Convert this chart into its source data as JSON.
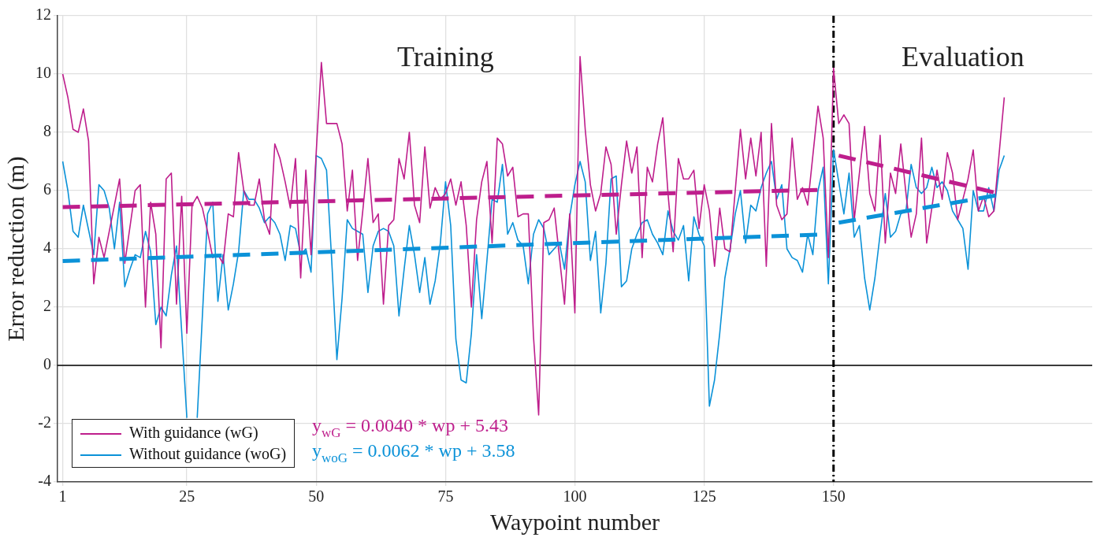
{
  "chart_data": {
    "type": "line",
    "xlabel": "Waypoint number",
    "ylabel": "Error reduction (m)",
    "xlim": [
      0,
      200
    ],
    "xticks": [
      1,
      25,
      50,
      75,
      100,
      125,
      150
    ],
    "ylim": [
      -4,
      12
    ],
    "yticks": [
      -4,
      -2,
      0,
      2,
      4,
      6,
      8,
      10,
      12
    ],
    "grid": true,
    "legend": "bottom left",
    "marker": "none",
    "series": [
      {
        "name": "With guidance (wG)",
        "color": "#be1e8c",
        "line_style": "solid",
        "x": [
          1,
          2,
          3,
          4,
          5,
          6,
          7,
          8,
          9,
          12,
          13,
          15,
          16,
          17,
          18,
          19,
          20,
          21,
          22,
          23,
          24,
          25,
          26,
          27,
          28,
          29,
          30,
          31,
          32,
          33,
          34,
          35,
          36,
          37,
          38,
          39,
          40,
          41,
          42,
          43,
          44,
          45,
          46,
          47,
          48,
          49,
          50,
          51,
          52,
          53,
          54,
          55,
          56,
          57,
          58,
          59,
          60,
          61,
          62,
          63,
          64,
          65,
          66,
          67,
          68,
          69,
          70,
          71,
          72,
          73,
          74,
          75,
          76,
          77,
          78,
          79,
          80,
          81,
          82,
          83,
          84,
          85,
          86,
          87,
          88,
          89,
          90,
          91,
          92,
          93,
          94,
          95,
          96,
          98,
          99,
          100,
          101,
          102,
          103,
          104,
          105,
          106,
          107,
          108,
          109,
          110,
          111,
          112,
          113,
          114,
          115,
          116,
          117,
          118,
          119,
          120,
          121,
          122,
          123,
          124,
          125,
          126,
          127,
          128,
          129,
          130,
          132,
          133,
          134,
          135,
          136,
          137,
          138,
          139,
          140,
          141,
          142,
          143,
          144,
          145,
          146,
          147,
          148,
          149,
          150,
          151,
          152,
          153,
          154,
          156,
          157,
          158,
          159,
          160,
          161,
          162,
          163,
          164,
          165,
          166,
          167,
          168,
          169,
          170,
          171,
          172,
          173,
          174,
          175,
          176,
          177,
          178,
          179,
          180,
          181,
          183
        ],
        "values": [
          10.0,
          9.2,
          8.1,
          8.0,
          8.8,
          7.7,
          2.8,
          4.4,
          3.7,
          6.4,
          3.5,
          6.0,
          6.2,
          2.0,
          5.6,
          4.5,
          0.6,
          6.4,
          6.6,
          2.1,
          5.8,
          1.1,
          5.5,
          5.8,
          5.4,
          4.6,
          3.7,
          3.8,
          3.5,
          5.2,
          5.1,
          7.3,
          6.0,
          5.5,
          5.5,
          6.4,
          5.0,
          4.5,
          7.6,
          7.1,
          6.3,
          5.4,
          7.1,
          3.0,
          6.7,
          3.8,
          7.3,
          10.4,
          8.3,
          8.3,
          8.3,
          7.6,
          5.3,
          6.7,
          3.6,
          5.3,
          7.1,
          4.9,
          5.2,
          2.1,
          4.8,
          5.0,
          7.1,
          6.4,
          8.0,
          5.5,
          4.9,
          7.5,
          5.4,
          6.1,
          5.7,
          5.9,
          6.4,
          5.5,
          6.3,
          4.8,
          2.0,
          5.0,
          6.3,
          7.0,
          4.2,
          7.8,
          7.6,
          6.5,
          6.8,
          5.1,
          5.2,
          5.2,
          1.0,
          -1.7,
          4.9,
          5.0,
          5.4,
          2.1,
          5.2,
          1.8,
          10.6,
          8.1,
          6.2,
          5.3,
          5.9,
          7.5,
          6.9,
          4.5,
          6.2,
          7.7,
          6.6,
          7.5,
          3.7,
          6.8,
          6.3,
          7.6,
          8.5,
          5.9,
          3.9,
          7.1,
          6.4,
          6.4,
          6.7,
          4.7,
          6.2,
          5.3,
          3.4,
          5.4,
          4.0,
          3.9,
          8.1,
          6.4,
          7.8,
          6.5,
          8.0,
          3.4,
          8.3,
          5.5,
          5.0,
          5.2,
          7.8,
          5.7,
          6.1,
          5.5,
          7.2,
          8.9,
          7.8,
          3.7,
          10.2,
          8.3,
          8.6,
          8.3,
          5.0,
          8.2,
          5.9,
          5.3,
          7.9,
          4.2,
          6.6,
          5.9,
          7.6,
          5.9,
          4.4,
          5.2,
          7.8,
          4.2,
          5.4,
          6.7,
          5.7,
          7.3,
          6.6,
          5.0,
          5.7,
          6.4,
          7.4,
          5.3,
          5.8,
          5.1,
          5.3,
          9.2
        ]
      },
      {
        "name": "Without guidance (woG)",
        "color": "#0b92d8",
        "line_style": "solid",
        "x": [
          1,
          2,
          3,
          4,
          5,
          7,
          8,
          9,
          10,
          11,
          12,
          13,
          14,
          15,
          16,
          17,
          18,
          19,
          20,
          21,
          22,
          23,
          25,
          26,
          27,
          29,
          30,
          31,
          32,
          33,
          34,
          35,
          36,
          37,
          38,
          39,
          40,
          41,
          42,
          43,
          44,
          45,
          46,
          47,
          48,
          49,
          50,
          51,
          52,
          53,
          54,
          55,
          56,
          57,
          58,
          59,
          60,
          61,
          62,
          63,
          64,
          65,
          66,
          67,
          68,
          69,
          70,
          71,
          72,
          73,
          74,
          75,
          76,
          77,
          78,
          79,
          80,
          81,
          82,
          83,
          84,
          85,
          86,
          87,
          88,
          89,
          90,
          91,
          92,
          93,
          94,
          95,
          96,
          97,
          98,
          99,
          100,
          101,
          102,
          103,
          104,
          105,
          106,
          107,
          108,
          109,
          110,
          111,
          112,
          113,
          114,
          115,
          116,
          117,
          118,
          119,
          120,
          121,
          122,
          123,
          124,
          125,
          126,
          127,
          128,
          129,
          130,
          131,
          132,
          133,
          134,
          135,
          136,
          137,
          138,
          139,
          140,
          141,
          142,
          143,
          144,
          145,
          146,
          147,
          148,
          149,
          150,
          151,
          152,
          153,
          154,
          155,
          156,
          157,
          158,
          159,
          160,
          161,
          162,
          163,
          164,
          165,
          166,
          167,
          168,
          169,
          170,
          171,
          172,
          173,
          174,
          175,
          176,
          177,
          178,
          179,
          180,
          181,
          182,
          183
        ],
        "values": [
          7.0,
          6.0,
          4.6,
          4.4,
          5.5,
          3.8,
          6.2,
          6.0,
          5.4,
          4.0,
          5.6,
          2.7,
          3.3,
          3.8,
          3.7,
          4.6,
          3.9,
          1.4,
          2.0,
          1.7,
          3.1,
          4.1,
          -1.8,
          null,
          -1.8,
          5.2,
          5.6,
          2.2,
          3.8,
          1.9,
          2.8,
          3.9,
          6.0,
          5.7,
          5.7,
          5.4,
          4.9,
          5.1,
          4.9,
          4.5,
          3.6,
          4.8,
          4.7,
          3.8,
          4.0,
          3.2,
          7.2,
          7.1,
          6.7,
          3.6,
          0.2,
          2.3,
          5.0,
          4.7,
          4.6,
          4.5,
          2.5,
          4.1,
          4.6,
          4.7,
          4.6,
          4.1,
          1.7,
          3.3,
          4.8,
          3.8,
          2.5,
          3.7,
          2.1,
          2.9,
          4.2,
          6.3,
          4.8,
          0.9,
          -0.5,
          -0.6,
          1.1,
          3.8,
          1.6,
          3.6,
          5.7,
          5.6,
          6.9,
          4.5,
          4.9,
          4.3,
          4.1,
          2.8,
          4.5,
          5.0,
          4.7,
          3.8,
          4.0,
          4.2,
          3.3,
          5.1,
          6.2,
          7.0,
          6.3,
          3.6,
          4.6,
          1.8,
          3.5,
          6.4,
          6.5,
          2.7,
          2.9,
          4.0,
          4.5,
          4.9,
          5.0,
          4.5,
          4.2,
          3.8,
          5.3,
          4.6,
          4.3,
          4.8,
          2.9,
          5.1,
          4.5,
          4.1,
          -1.4,
          -0.5,
          1.1,
          3.0,
          4.0,
          5.2,
          6.0,
          4.2,
          5.5,
          5.3,
          6.1,
          6.6,
          7.0,
          5.7,
          6.2,
          4.0,
          3.7,
          3.6,
          3.2,
          4.5,
          3.8,
          6.0,
          6.8,
          2.8,
          7.4,
          6.3,
          5.2,
          6.6,
          4.4,
          4.8,
          3.0,
          1.9,
          3.0,
          4.5,
          5.9,
          4.4,
          4.6,
          5.2,
          5.3,
          6.9,
          6.1,
          5.9,
          6.1,
          6.8,
          6.1,
          6.3,
          6.0,
          5.3,
          5.0,
          4.7,
          3.3,
          6.0,
          5.3,
          5.3,
          6.1,
          5.3,
          6.7,
          7.2
        ]
      },
      {
        "color": "#be1e8c",
        "line_style": "dashed",
        "x": [
          1,
          149
        ],
        "values": [
          5.43,
          6.03
        ]
      },
      {
        "color": "#0b92d8",
        "line_style": "dashed",
        "x": [
          1,
          149
        ],
        "values": [
          3.58,
          4.5
        ]
      },
      {
        "color": "#be1e8c",
        "line_style": "dashed",
        "x": [
          151,
          182
        ],
        "values": [
          7.2,
          5.9
        ]
      },
      {
        "color": "#0b92d8",
        "line_style": "dashed",
        "x": [
          151,
          182
        ],
        "values": [
          4.9,
          5.85
        ]
      }
    ],
    "ref_lines": [
      {
        "axis": "y",
        "value": 0,
        "color": "#000000",
        "line_style": "solid"
      },
      {
        "axis": "x",
        "value": 150,
        "color": "#000000",
        "line_style": "dashed"
      }
    ],
    "annotations": [
      "Training",
      "Evaluation",
      "y$_{wG}$ = 0.0040 * wp + 5.43",
      "y$_{woG}$ = 0.0062 * wp + 3.58"
    ]
  }
}
